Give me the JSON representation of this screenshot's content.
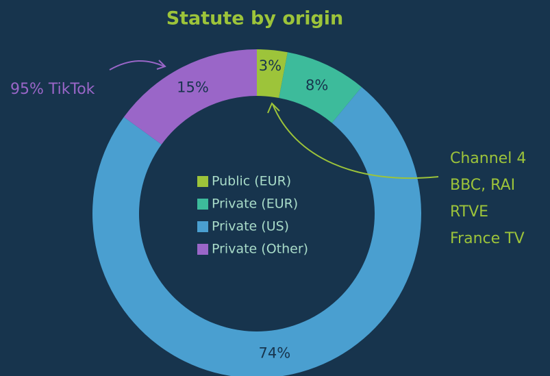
{
  "chart_data": {
    "type": "donut",
    "title": "Statute by origin",
    "categories": [
      "Public (EUR)",
      "Private (EUR)",
      "Private (US)",
      "Private (Other)"
    ],
    "values": [
      3,
      8,
      74,
      15
    ],
    "value_labels": [
      "3%",
      "8%",
      "74%",
      "15%"
    ],
    "colors": [
      "#9dc43a",
      "#3dbb9b",
      "#4a9fd0",
      "#9a66c8"
    ],
    "annotations": [
      "95% TikTok",
      "Channel 4",
      "BBC, RAI",
      "RTVE",
      "France TV"
    ]
  }
}
